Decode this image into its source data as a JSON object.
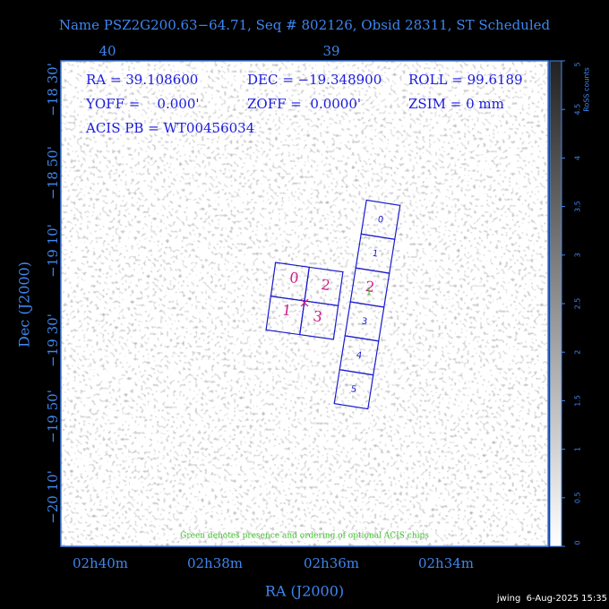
{
  "header": {
    "title": "Name PSZ2G200.63−64.71, Seq # 802126, Obsid 28311, ST Scheduled"
  },
  "info": [
    "RA = 39.108600",
    "DEC = −19.348900",
    "ROLL = 99.6189",
    "YOFF =    0.000'",
    "ZOFF =  0.0000'",
    "ZSIM = 0 mm",
    "ACIS PB = WT00456034"
  ],
  "top_axis": [
    "40",
    "39"
  ],
  "left_axis": [
    "−18 30'",
    "−18 50'",
    "−19 10'",
    "−19 30'",
    "−19 50'",
    "−20 10'"
  ],
  "bottom_axis": [
    "02h40m",
    "02h38m",
    "02h36m",
    "02h34m"
  ],
  "x_label": "RA (J2000)",
  "y_label": "Dec (J2000)",
  "colorbar": {
    "label": "RoSS counts",
    "ticks": [
      "0",
      "0.5",
      "1",
      "1.5",
      "2",
      "2.5",
      "3",
      "3.5",
      "4",
      "4.5",
      "5"
    ]
  },
  "acis_i": [
    "0",
    "2",
    "1",
    "3"
  ],
  "acis_s": [
    "0",
    "1",
    "2",
    "3",
    "4",
    "5"
  ],
  "optional_chip": "1",
  "note": "Green denotes presence and ordering of optional ACIS chips",
  "footer": "jwing  6-Aug-2025 15:35"
}
